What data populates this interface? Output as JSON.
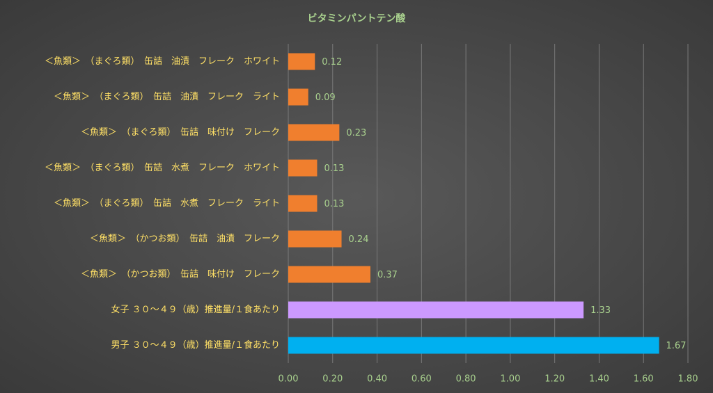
{
  "chart_data": {
    "type": "hbar",
    "title": "ビタミンパントテン酸",
    "categories": [
      "＜魚類＞　（まぐろ類）　缶詰　油漬　フレーク　ホワイト",
      "＜魚類＞　（まぐろ類）　缶詰　油漬　フレーク　ライト",
      "＜魚類＞　（まぐろ類）　缶詰　味付け　フレーク",
      "＜魚類＞　（まぐろ類）　缶詰　水煮　フレーク　ホワイト",
      "＜魚類＞　（まぐろ類）　缶詰　水煮　フレーク　ライト",
      "＜魚類＞　（かつお類）　缶詰　油漬　フレーク",
      "＜魚類＞　（かつお類）　缶詰　味付け　フレーク",
      "女子 ３０～４９（歳）推進量/１食あたり",
      "男子 ３０～４９（歳）推進量/１食あたり"
    ],
    "values": [
      0.12,
      0.09,
      0.23,
      0.13,
      0.13,
      0.24,
      0.37,
      1.33,
      1.67
    ],
    "colors": [
      "#f07f2e",
      "#f07f2e",
      "#f07f2e",
      "#f07f2e",
      "#f07f2e",
      "#f07f2e",
      "#f07f2e",
      "#cc99ff",
      "#00b0f0"
    ],
    "xlim": [
      0,
      1.8
    ],
    "xticks": [
      {
        "value": 0,
        "label": "0.00"
      },
      {
        "value": 0.2,
        "label": "0.20"
      },
      {
        "value": 0.4,
        "label": "0.40"
      },
      {
        "value": 0.6,
        "label": "0.60"
      },
      {
        "value": 0.8,
        "label": "0.80"
      },
      {
        "value": 1,
        "label": "1.00"
      },
      {
        "value": 1.2,
        "label": "1.20"
      },
      {
        "value": 1.4,
        "label": "1.40"
      },
      {
        "value": 1.6,
        "label": "1.60"
      },
      {
        "value": 1.8,
        "label": "1.80"
      }
    ],
    "grid": true
  }
}
